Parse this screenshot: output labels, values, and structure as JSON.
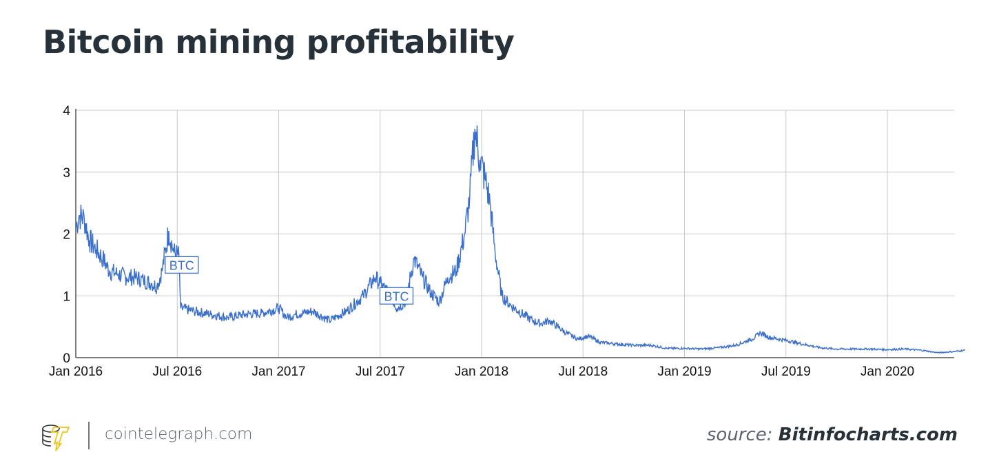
{
  "title": "Bitcoin mining profitability",
  "footer": {
    "brand": "cointelegraph.com",
    "source_prefix": "source:",
    "source_name": "Bitinfocharts.com"
  },
  "colors": {
    "line": "#3a6fcc",
    "grid": "#c8c8c8",
    "title": "#27313a"
  },
  "chart_data": {
    "type": "line",
    "title": "Bitcoin mining profitability",
    "xlabel": "",
    "ylabel": "",
    "ylim": [
      0,
      4
    ],
    "yticks": [
      "0",
      "1",
      "2",
      "3",
      "4"
    ],
    "xticks": [
      {
        "label": "Jan 2016",
        "m": 0
      },
      {
        "label": "Jul 2016",
        "m": 6
      },
      {
        "label": "Jan 2017",
        "m": 12
      },
      {
        "label": "Jul 2017",
        "m": 18
      },
      {
        "label": "Jan 2018",
        "m": 24
      },
      {
        "label": "Jul 2018",
        "m": 30
      },
      {
        "label": "Jan 2019",
        "m": 36
      },
      {
        "label": "Jul 2019",
        "m": 42
      },
      {
        "label": "Jan 2020",
        "m": 48
      }
    ],
    "xlim_months_from_jan2016": [
      0,
      52.6
    ],
    "grid": true,
    "series": [
      {
        "name": "BTC",
        "points": [
          [
            0,
            2.1
          ],
          [
            0.2,
            2.3
          ],
          [
            0.5,
            2.25
          ],
          [
            0.8,
            1.9
          ],
          [
            1.2,
            1.75
          ],
          [
            1.6,
            1.6
          ],
          [
            2,
            1.4
          ],
          [
            2.5,
            1.35
          ],
          [
            3,
            1.3
          ],
          [
            3.5,
            1.3
          ],
          [
            4,
            1.25
          ],
          [
            4.5,
            1.2
          ],
          [
            4.8,
            1.15
          ],
          [
            5.1,
            1.4
          ],
          [
            5.5,
            2.05
          ],
          [
            5.8,
            1.7
          ],
          [
            6.1,
            1.65
          ],
          [
            6.2,
            0.8
          ],
          [
            7,
            0.75
          ],
          [
            8,
            0.7
          ],
          [
            9,
            0.65
          ],
          [
            10,
            0.7
          ],
          [
            11,
            0.72
          ],
          [
            12,
            0.8
          ],
          [
            12.5,
            0.65
          ],
          [
            13,
            0.7
          ],
          [
            14,
            0.75
          ],
          [
            15,
            0.6
          ],
          [
            16,
            0.75
          ],
          [
            17,
            1.0
          ],
          [
            17.7,
            1.3
          ],
          [
            18,
            1.2
          ],
          [
            18.5,
            1.05
          ],
          [
            19,
            0.8
          ],
          [
            19.5,
            0.9
          ],
          [
            20,
            1.6
          ],
          [
            20.5,
            1.3
          ],
          [
            21,
            1.05
          ],
          [
            21.5,
            0.9
          ],
          [
            22,
            1.3
          ],
          [
            22.5,
            1.4
          ],
          [
            23,
            2.0
          ],
          [
            23.3,
            2.6
          ],
          [
            23.6,
            3.7
          ],
          [
            23.9,
            3.2
          ],
          [
            24.2,
            2.9
          ],
          [
            24.5,
            2.5
          ],
          [
            24.8,
            1.7
          ],
          [
            25.2,
            1.0
          ],
          [
            25.7,
            0.85
          ],
          [
            26.2,
            0.75
          ],
          [
            27,
            0.6
          ],
          [
            27.5,
            0.55
          ],
          [
            28,
            0.6
          ],
          [
            28.5,
            0.5
          ],
          [
            29,
            0.4
          ],
          [
            29.7,
            0.3
          ],
          [
            30.3,
            0.35
          ],
          [
            31,
            0.25
          ],
          [
            32,
            0.22
          ],
          [
            33,
            0.2
          ],
          [
            34,
            0.2
          ],
          [
            35,
            0.15
          ],
          [
            36,
            0.15
          ],
          [
            37,
            0.14
          ],
          [
            38,
            0.16
          ],
          [
            39,
            0.2
          ],
          [
            40,
            0.3
          ],
          [
            40.5,
            0.4
          ],
          [
            41,
            0.33
          ],
          [
            42,
            0.28
          ],
          [
            43,
            0.22
          ],
          [
            44,
            0.16
          ],
          [
            45,
            0.14
          ],
          [
            46,
            0.14
          ],
          [
            47,
            0.14
          ],
          [
            48,
            0.13
          ],
          [
            49,
            0.14
          ],
          [
            50,
            0.12
          ],
          [
            51,
            0.08
          ],
          [
            52,
            0.1
          ],
          [
            52.6,
            0.12
          ]
        ]
      }
    ],
    "annotations": [
      {
        "text": "BTC",
        "m": 5.9,
        "value": 1.5
      },
      {
        "text": "BTC",
        "m": 18.6,
        "value": 1.0
      }
    ]
  }
}
